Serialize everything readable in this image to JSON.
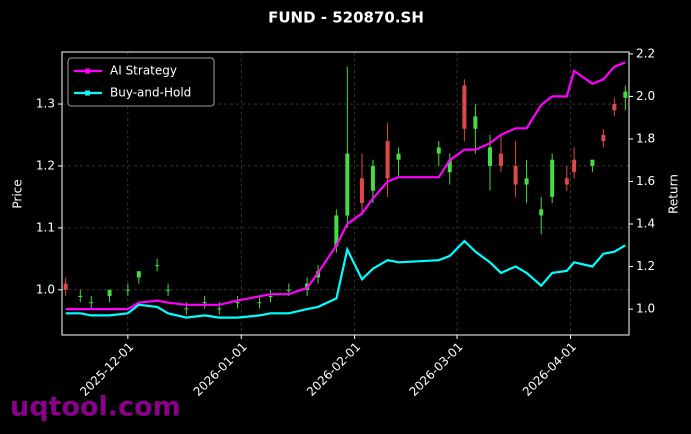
{
  "chart_data": {
    "type": "candlestick",
    "title": "FUND - 520870.SH",
    "ylabel": "Price",
    "y2label": "Return",
    "watermark": "uqtool.com",
    "x": [
      "2025-11-14",
      "2025-11-18",
      "2025-11-21",
      "2025-11-26",
      "2025-12-01",
      "2025-12-04",
      "2025-12-09",
      "2025-12-12",
      "2025-12-17",
      "2025-12-22",
      "2025-12-26",
      "2025-12-31",
      "2026-01-06",
      "2026-01-09",
      "2026-01-14",
      "2026-01-19",
      "2026-01-22",
      "2026-01-27",
      "2026-01-30",
      "2026-02-03",
      "2026-02-06",
      "2026-02-10",
      "2026-02-13",
      "2026-02-24",
      "2026-02-27",
      "2026-03-03",
      "2026-03-06",
      "2026-03-10",
      "2026-03-13",
      "2026-03-17",
      "2026-03-20",
      "2026-03-24",
      "2026-03-27",
      "2026-03-31",
      "2026-04-02",
      "2026-04-07",
      "2026-04-10",
      "2026-04-13",
      "2026-04-16"
    ],
    "open": [
      1.01,
      0.99,
      0.98,
      0.99,
      1.0,
      1.02,
      1.04,
      1.0,
      0.97,
      0.98,
      0.97,
      0.98,
      0.98,
      0.99,
      1.0,
      1.0,
      1.02,
      1.07,
      1.12,
      1.18,
      1.16,
      1.24,
      1.21,
      1.22,
      1.19,
      1.33,
      1.26,
      1.2,
      1.22,
      1.2,
      1.17,
      1.12,
      1.15,
      1.18,
      1.21,
      1.2,
      1.25,
      1.3,
      1.31
    ],
    "high": [
      1.02,
      1.0,
      0.99,
      1.0,
      1.01,
      1.03,
      1.05,
      1.01,
      0.98,
      0.99,
      0.98,
      0.99,
      0.99,
      1.0,
      1.01,
      1.02,
      1.04,
      1.13,
      1.36,
      1.22,
      1.21,
      1.27,
      1.23,
      1.24,
      1.22,
      1.34,
      1.3,
      1.25,
      1.25,
      1.24,
      1.21,
      1.15,
      1.22,
      1.2,
      1.23,
      1.21,
      1.26,
      1.31,
      1.33
    ],
    "low": [
      0.99,
      0.98,
      0.97,
      0.98,
      0.99,
      1.01,
      1.03,
      0.99,
      0.96,
      0.97,
      0.96,
      0.97,
      0.97,
      0.98,
      0.99,
      0.99,
      1.01,
      1.06,
      1.1,
      1.12,
      1.14,
      1.15,
      1.18,
      1.2,
      1.17,
      1.24,
      1.22,
      1.16,
      1.19,
      1.15,
      1.14,
      1.09,
      1.14,
      1.16,
      1.18,
      1.19,
      1.23,
      1.28,
      1.29
    ],
    "close": [
      1.0,
      0.99,
      0.98,
      1.0,
      1.0,
      1.03,
      1.04,
      1.0,
      0.97,
      0.98,
      0.97,
      0.98,
      0.98,
      0.99,
      1.0,
      1.01,
      1.03,
      1.12,
      1.22,
      1.14,
      1.2,
      1.18,
      1.22,
      1.23,
      1.21,
      1.26,
      1.28,
      1.23,
      1.2,
      1.17,
      1.18,
      1.13,
      1.21,
      1.17,
      1.19,
      1.21,
      1.24,
      1.29,
      1.32
    ],
    "up_color": "#44dd44",
    "down_color": "#e04848",
    "series": [
      {
        "name": "AI Strategy",
        "color": "#ff00ff",
        "axis": "y2",
        "values": [
          1.0,
          1.0,
          1.0,
          1.0,
          1.0,
          1.03,
          1.04,
          1.03,
          1.02,
          1.02,
          1.02,
          1.04,
          1.06,
          1.07,
          1.07,
          1.1,
          1.17,
          1.3,
          1.4,
          1.45,
          1.52,
          1.6,
          1.62,
          1.62,
          1.7,
          1.75,
          1.75,
          1.78,
          1.82,
          1.85,
          1.85,
          1.96,
          2.0,
          2.0,
          2.12,
          2.06,
          2.08,
          2.14,
          2.16
        ]
      },
      {
        "name": "Buy-and-Hold",
        "color": "#00ffff",
        "axis": "y2",
        "values": [
          0.98,
          0.98,
          0.97,
          0.97,
          0.98,
          1.02,
          1.01,
          0.98,
          0.96,
          0.97,
          0.96,
          0.96,
          0.97,
          0.98,
          0.98,
          1.0,
          1.01,
          1.05,
          1.28,
          1.14,
          1.19,
          1.23,
          1.22,
          1.23,
          1.25,
          1.32,
          1.27,
          1.22,
          1.17,
          1.2,
          1.17,
          1.11,
          1.17,
          1.18,
          1.22,
          1.2,
          1.26,
          1.27,
          1.3
        ]
      }
    ],
    "xlim": [
      "2025-11-13",
      "2026-04-17"
    ],
    "xticks": [
      "2025-12-01",
      "2026-01-01",
      "2026-02-01",
      "2026-03-01",
      "2026-04-01"
    ],
    "ylim": [
      0.927,
      1.384
    ],
    "yticks": [
      {
        "value": 1.0,
        "label": "1.0"
      },
      1.1,
      1.2,
      1.3
    ],
    "y2lim": [
      0.878,
      2.209
    ],
    "y2ticks": [
      {
        "value": 1.0,
        "label": "1.0"
      },
      1.2,
      1.4,
      1.6,
      1.8,
      {
        "value": 2.0,
        "label": "2.0"
      },
      2.2
    ],
    "grid": true,
    "legend": "upper-left"
  }
}
